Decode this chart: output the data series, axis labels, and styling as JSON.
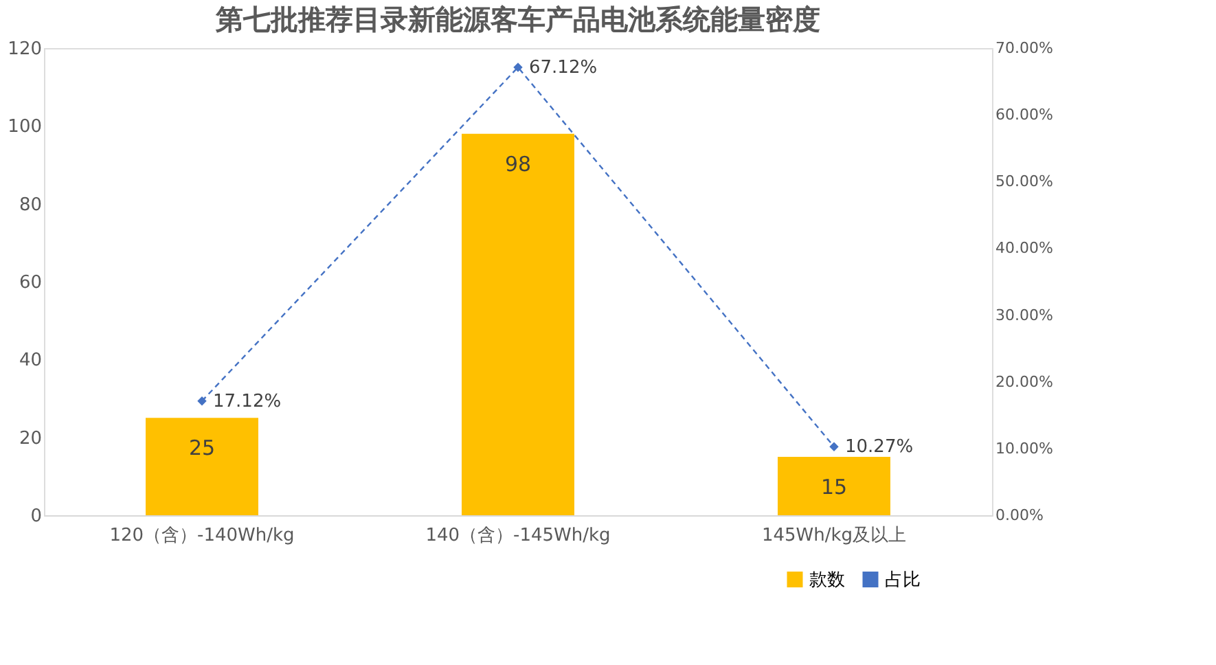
{
  "chart_data": {
    "type": "bar",
    "title": "第七批推荐目录新能源客车产品电池系统能量密度",
    "categories": [
      "120（含）-140Wh/kg",
      "140（含）-145Wh/kg",
      "145Wh/kg及以上"
    ],
    "series": [
      {
        "name": "款数",
        "color": "#ffc000",
        "values": [
          25,
          98,
          15
        ],
        "value_labels": [
          "25",
          "98",
          "15"
        ]
      },
      {
        "name": "占比",
        "type": "line",
        "axis": "y2",
        "color": "#4472c4",
        "values": [
          17.12,
          67.12,
          10.27
        ],
        "value_labels": [
          "17.12%",
          "67.12%",
          "10.27%"
        ],
        "marker": "diamond",
        "line_style": "dashed"
      }
    ],
    "ylim": [
      0,
      120
    ],
    "yticks": [
      0,
      20,
      40,
      60,
      80,
      100,
      120
    ],
    "y2lim": [
      0,
      70
    ],
    "y2ticks": [
      {
        "value": 0,
        "label": "0.00%"
      },
      {
        "value": 10,
        "label": "10.00%"
      },
      {
        "value": 20,
        "label": "20.00%"
      },
      {
        "value": 30,
        "label": "30.00%"
      },
      {
        "value": 40,
        "label": "40.00%"
      },
      {
        "value": 50,
        "label": "50.00%"
      },
      {
        "value": 60,
        "label": "60.00%"
      },
      {
        "value": 70,
        "label": "70.00%"
      }
    ],
    "grid": false,
    "legend": "bottom right"
  }
}
